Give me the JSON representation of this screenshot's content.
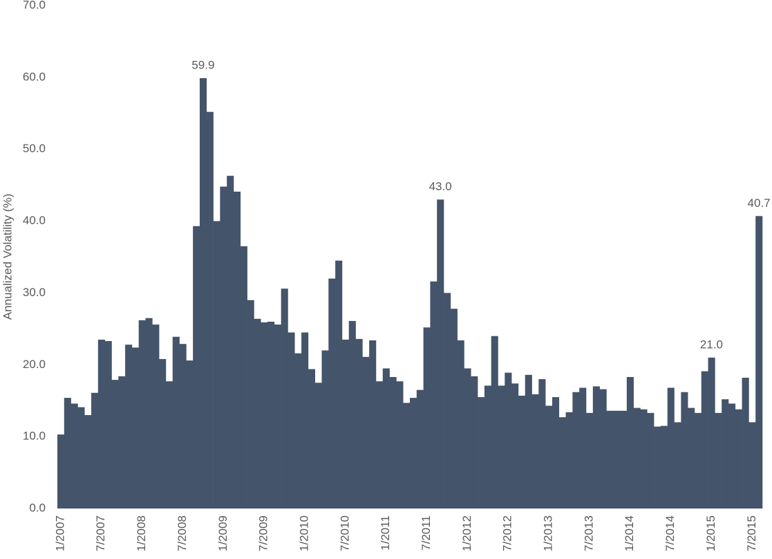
{
  "chart_data": {
    "type": "bar",
    "y_label": "Annualized Volatility (%)",
    "color": "#44546a",
    "categories": [
      "1/2007",
      null,
      null,
      null,
      null,
      null,
      "7/2007",
      null,
      null,
      null,
      null,
      null,
      "1/2008",
      null,
      null,
      null,
      null,
      null,
      "7/2008",
      null,
      null,
      null,
      null,
      null,
      "1/2009",
      null,
      null,
      null,
      null,
      null,
      "7/2009",
      null,
      null,
      null,
      null,
      null,
      "1/2010",
      null,
      null,
      null,
      null,
      null,
      "7/2010",
      null,
      null,
      null,
      null,
      null,
      "1/2011",
      null,
      null,
      null,
      null,
      null,
      "7/2011",
      null,
      null,
      null,
      null,
      null,
      "1/2012",
      null,
      null,
      null,
      null,
      null,
      "7/2012",
      null,
      null,
      null,
      null,
      null,
      "1/2013",
      null,
      null,
      null,
      null,
      null,
      "7/2013",
      null,
      null,
      null,
      null,
      null,
      "1/2014",
      null,
      null,
      null,
      null,
      null,
      "7/2014",
      null,
      null,
      null,
      null,
      null,
      "1/2015",
      null,
      null,
      null,
      null,
      null,
      "7/2015",
      null
    ],
    "values": [
      10.3,
      15.4,
      14.6,
      14.1,
      13.0,
      16.1,
      23.5,
      23.3,
      17.9,
      18.4,
      22.8,
      22.4,
      26.2,
      26.5,
      25.6,
      20.8,
      17.7,
      23.9,
      22.9,
      20.6,
      39.3,
      59.9,
      55.2,
      40.0,
      44.8,
      46.3,
      44.1,
      36.5,
      29.0,
      26.4,
      25.9,
      26.0,
      25.6,
      30.6,
      24.5,
      21.6,
      24.5,
      19.4,
      17.5,
      22.0,
      32.0,
      34.5,
      23.5,
      26.1,
      23.6,
      21.1,
      23.4,
      17.7,
      19.5,
      18.3,
      17.7,
      14.7,
      15.4,
      16.5,
      25.2,
      31.6,
      43.0,
      30.0,
      27.8,
      23.4,
      19.5,
      18.4,
      15.5,
      17.1,
      24.0,
      17.1,
      18.9,
      17.4,
      15.7,
      18.6,
      15.9,
      18.0,
      14.3,
      15.5,
      12.7,
      13.4,
      16.2,
      16.8,
      13.3,
      17.0,
      16.6,
      13.6,
      13.6,
      13.6,
      18.3,
      14.0,
      13.8,
      13.3,
      11.4,
      11.5,
      16.8,
      12.0,
      16.2,
      14.0,
      13.3,
      19.1,
      21.0,
      13.3,
      15.2,
      14.6,
      13.8,
      18.2,
      12.0,
      40.7
    ],
    "value_labels": [
      null,
      null,
      null,
      null,
      null,
      null,
      null,
      null,
      null,
      null,
      null,
      null,
      null,
      null,
      null,
      null,
      null,
      null,
      null,
      null,
      null,
      "59.9",
      null,
      null,
      null,
      null,
      null,
      null,
      null,
      null,
      null,
      null,
      null,
      null,
      null,
      null,
      null,
      null,
      null,
      null,
      null,
      null,
      null,
      null,
      null,
      null,
      null,
      null,
      null,
      null,
      null,
      null,
      null,
      null,
      null,
      null,
      "43.0",
      null,
      null,
      null,
      null,
      null,
      null,
      null,
      null,
      null,
      null,
      null,
      null,
      null,
      null,
      null,
      null,
      null,
      null,
      null,
      null,
      null,
      null,
      null,
      null,
      null,
      null,
      null,
      null,
      null,
      null,
      null,
      null,
      null,
      null,
      null,
      null,
      null,
      null,
      null,
      "21.0",
      null,
      null,
      null,
      null,
      null,
      null,
      "40.7"
    ],
    "ylim": [
      0,
      70
    ],
    "yticks": [
      {
        "value": 0,
        "label": "0.0"
      },
      {
        "value": 10,
        "label": "10.0"
      },
      {
        "value": 20,
        "label": "20.0"
      },
      {
        "value": 30,
        "label": "30.0"
      },
      {
        "value": 40,
        "label": "40.0"
      },
      {
        "value": 50,
        "label": "50.0"
      },
      {
        "value": 60,
        "label": "60.0"
      },
      {
        "value": 70,
        "label": "70.0"
      }
    ],
    "grid": false
  }
}
